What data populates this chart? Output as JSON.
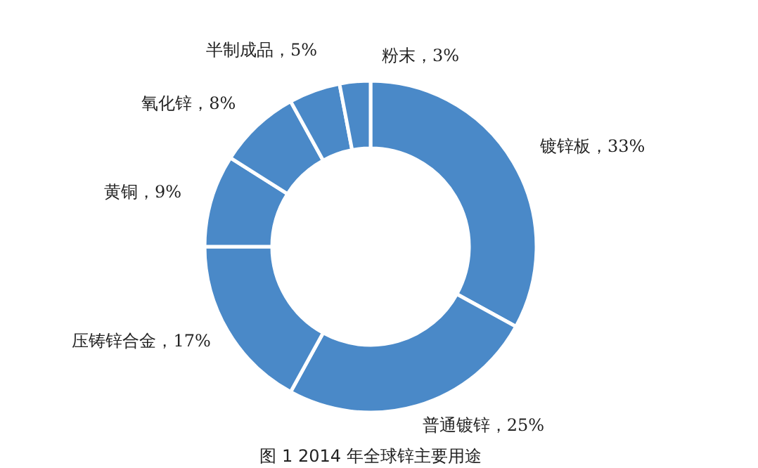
{
  "chart_data": {
    "type": "donut",
    "title": "图 1 2014 年全球锌主要用途",
    "categories": [
      "镀锌板",
      "普通镀锌",
      "压铸锌合金",
      "黄铜",
      "氧化锌",
      "半制成品",
      "粉末"
    ],
    "values": [
      33,
      25,
      17,
      9,
      8,
      5,
      3
    ],
    "value_labels": [
      "33%",
      "25%",
      "17%",
      "9%",
      "8%",
      "5%",
      "3%"
    ],
    "colors": [
      "#4a89c8",
      "#4a89c8",
      "#4a89c8",
      "#4a89c8",
      "#4a89c8",
      "#4a89c8",
      "#4a89c8"
    ]
  }
}
